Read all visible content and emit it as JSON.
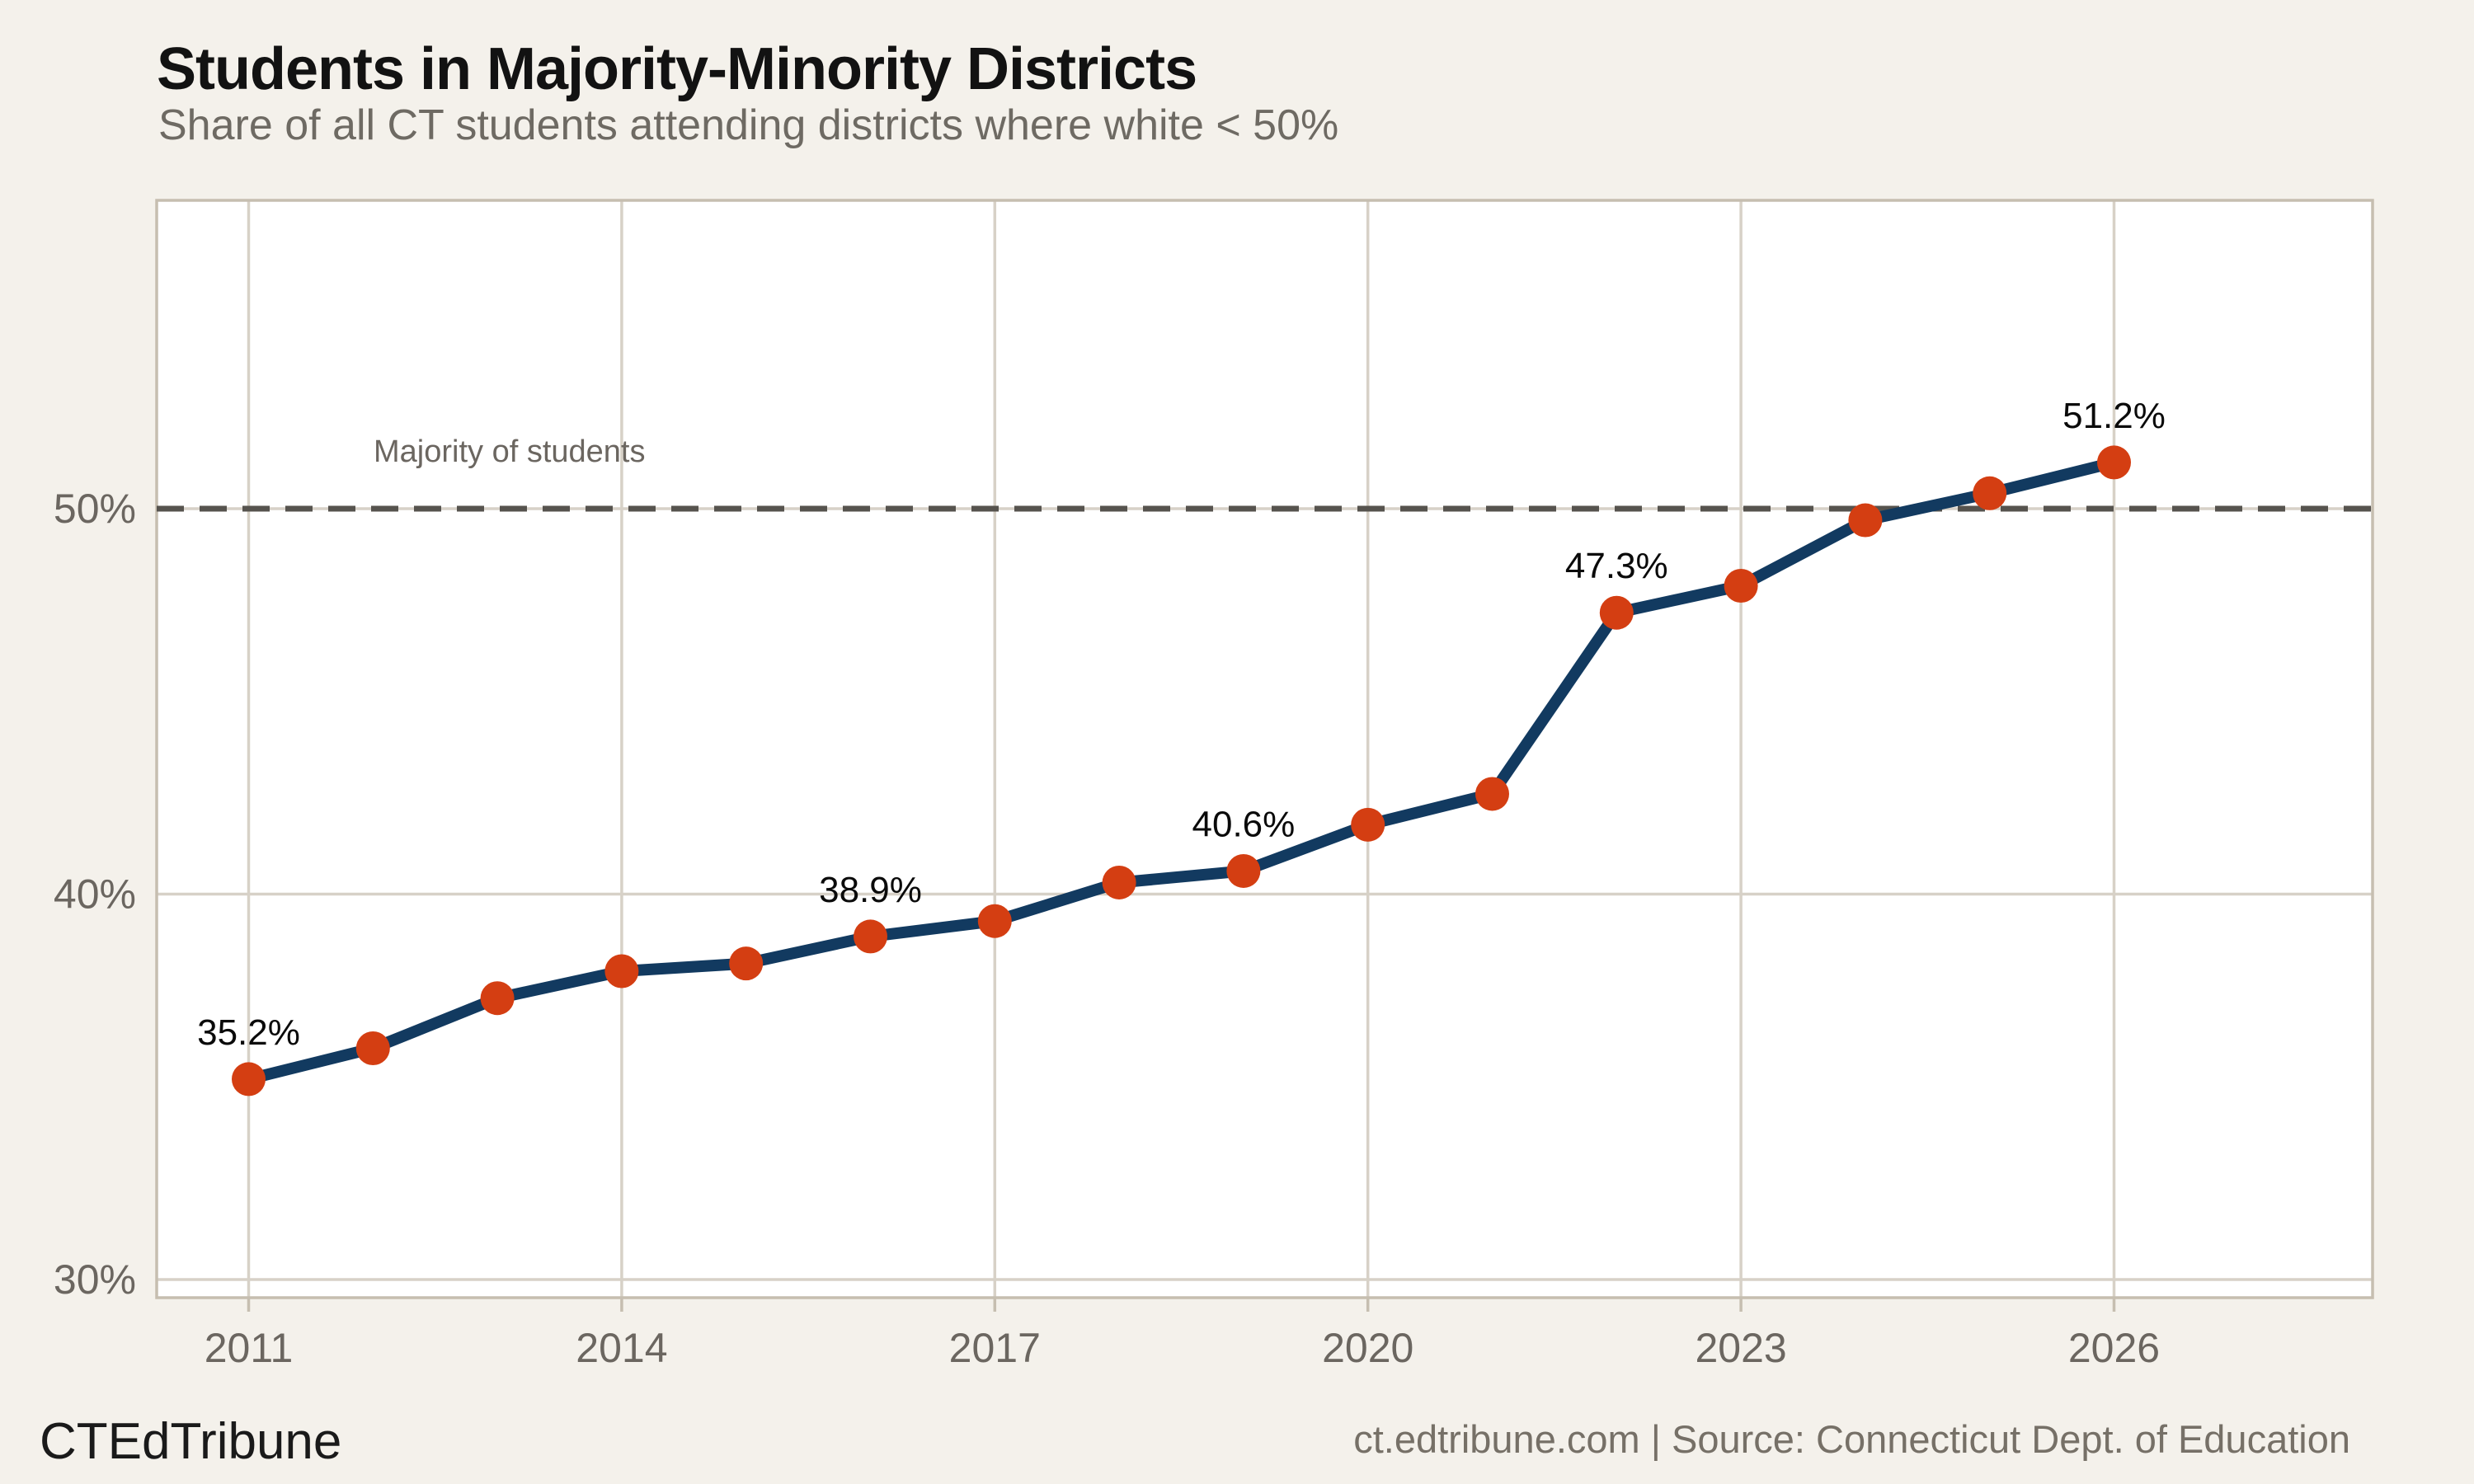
{
  "header": {
    "title": "Students in Majority-Minority Districts",
    "subtitle": "Share of all CT students attending districts where white < 50%"
  },
  "footer": {
    "brand": "CTEdTribune",
    "source": "ct.edtribune.com | Source: Connecticut Dept. of Education"
  },
  "chart_data": {
    "type": "line",
    "title": "Students in Majority-Minority Districts",
    "subtitle": "Share of all CT students attending districts where white < 50%",
    "x": [
      2011,
      2012,
      2013,
      2014,
      2015,
      2016,
      2017,
      2018,
      2019,
      2020,
      2021,
      2022,
      2023,
      2024,
      2025,
      2026
    ],
    "values": [
      35.2,
      36.0,
      37.3,
      38.0,
      38.2,
      38.9,
      39.3,
      40.3,
      40.6,
      41.8,
      42.6,
      47.3,
      48.0,
      49.7,
      50.4,
      51.2
    ],
    "xlabel": "",
    "ylabel": "",
    "xlim": [
      2010.26,
      2028.08
    ],
    "ylim": [
      29.5,
      58.0
    ],
    "grid": true,
    "legend": false,
    "x_axis": {
      "ticks": [
        2011,
        2014,
        2017,
        2020,
        2023,
        2026
      ],
      "labels": [
        "2011",
        "2014",
        "2017",
        "2020",
        "2023",
        "2026"
      ]
    },
    "y_axis": {
      "ticks": [
        30,
        40,
        50
      ],
      "labels": [
        "30%",
        "40%",
        "50%"
      ]
    },
    "point_labels": {
      "2011": "35.2%",
      "2016": "38.9%",
      "2019": "40.6%",
      "2022": "47.3%",
      "2026": "51.2%"
    },
    "reference_line": {
      "y": 50,
      "label": "Majority of students"
    },
    "colors": {
      "page_bg": "#f4f1eb",
      "plot_bg": "#ffffff",
      "grid": "#d7d1c7",
      "border": "#c6beb0",
      "dashed": "#56534e",
      "line": "#123a60",
      "point": "#d43e12",
      "axis_text": "#6b6660",
      "label_text": "#0a0a0a",
      "annotation_text": "#6b6660"
    }
  }
}
